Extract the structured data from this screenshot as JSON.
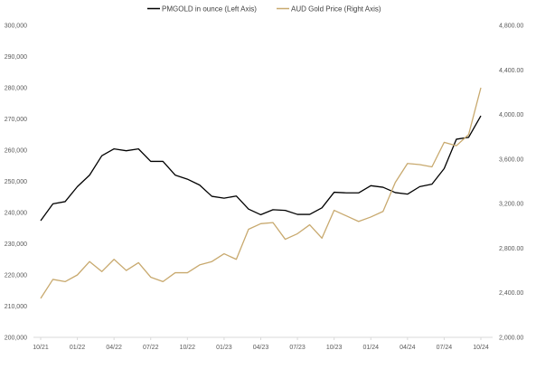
{
  "chart_data": {
    "type": "line",
    "legend_position": "top-center",
    "grid": false,
    "x_ticks": [
      "10/21",
      "01/22",
      "04/22",
      "07/22",
      "10/22",
      "01/23",
      "04/23",
      "07/23",
      "10/23",
      "01/24",
      "04/24",
      "07/24",
      "10/24"
    ],
    "y_left": {
      "min": 200000,
      "max": 300000,
      "step": 10000,
      "tick_labels": [
        "200,000",
        "210,000",
        "220,000",
        "230,000",
        "240,000",
        "250,000",
        "260,000",
        "270,000",
        "280,000",
        "290,000",
        "300,000"
      ]
    },
    "y_right": {
      "min": 2000,
      "max": 4800,
      "step": 400,
      "tick_labels": [
        "2,000.00",
        "2,400.00",
        "2,800.00",
        "3,200.00",
        "3,600.00",
        "4,000.00",
        "4,400.00",
        "4,800.00"
      ]
    },
    "series": [
      {
        "name": "PMGOLD in ounce (Left Axis)",
        "axis": "left",
        "color": "#000000",
        "x": [
          "2021-10",
          "2021-11",
          "2021-12",
          "2022-01",
          "2022-02",
          "2022-03",
          "2022-04",
          "2022-05",
          "2022-06",
          "2022-07",
          "2022-08",
          "2022-09",
          "2022-10",
          "2022-11",
          "2022-12",
          "2023-01",
          "2023-02",
          "2023-03",
          "2023-04",
          "2023-05",
          "2023-06",
          "2023-07",
          "2023-08",
          "2023-09",
          "2023-10",
          "2023-11",
          "2023-12",
          "2024-01",
          "2024-02",
          "2024-03",
          "2024-04",
          "2024-05",
          "2024-06",
          "2024-07",
          "2024-08",
          "2024-09",
          "2024-10"
        ],
        "values": [
          237400,
          242800,
          243500,
          248300,
          252000,
          258200,
          260400,
          259800,
          260400,
          256400,
          256400,
          252000,
          250700,
          248800,
          245200,
          244600,
          245300,
          241100,
          239300,
          240900,
          240700,
          239400,
          239400,
          241500,
          246500,
          246300,
          246300,
          248600,
          248100,
          246400,
          245900,
          248300,
          249100,
          254100,
          263500,
          264100,
          271000
        ]
      },
      {
        "name": "AUD Gold Price (Right Axis)",
        "axis": "right",
        "color": "#C8A96E",
        "x": [
          "2021-10",
          "2021-11",
          "2021-12",
          "2022-01",
          "2022-02",
          "2022-03",
          "2022-04",
          "2022-05",
          "2022-06",
          "2022-07",
          "2022-08",
          "2022-09",
          "2022-10",
          "2022-11",
          "2022-12",
          "2023-01",
          "2023-02",
          "2023-03",
          "2023-04",
          "2023-05",
          "2023-06",
          "2023-07",
          "2023-08",
          "2023-09",
          "2023-10",
          "2023-11",
          "2023-12",
          "2024-01",
          "2024-02",
          "2024-03",
          "2024-04",
          "2024-05",
          "2024-06",
          "2024-07",
          "2024-08",
          "2024-09",
          "2024-10"
        ],
        "values": [
          2350,
          2520,
          2500,
          2560,
          2680,
          2590,
          2700,
          2600,
          2670,
          2540,
          2500,
          2580,
          2580,
          2650,
          2680,
          2750,
          2700,
          2970,
          3020,
          3030,
          2880,
          2930,
          3010,
          2890,
          3140,
          3090,
          3040,
          3080,
          3130,
          3390,
          3560,
          3550,
          3530,
          3750,
          3720,
          3820,
          4240
        ]
      }
    ]
  }
}
